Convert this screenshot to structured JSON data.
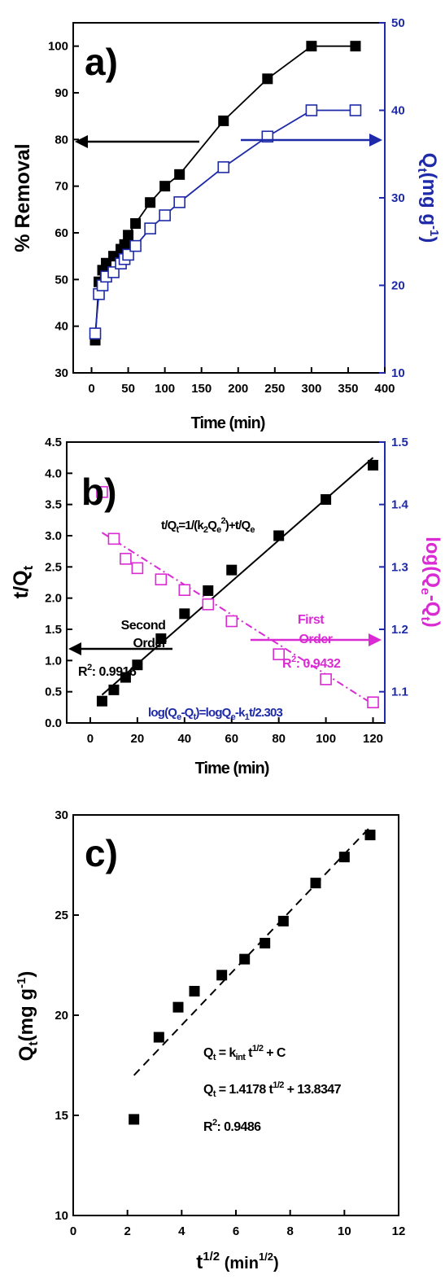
{
  "chart_data": [
    {
      "panel": "a)",
      "type": "line",
      "xlabel": "Time (min)",
      "ylabel": "% Removal",
      "y2label": "Q",
      "y2label_sub": "t",
      "y2label_unit": "(mg g",
      "y2label_sup": "-1",
      "y2label_close": ")",
      "xlim": [
        -25,
        400
      ],
      "ylim": [
        30,
        105
      ],
      "y2lim": [
        10,
        50
      ],
      "xticks": [
        "0",
        "50",
        "100",
        "150",
        "200",
        "250",
        "300",
        "350",
        "400"
      ],
      "yticks": [
        "30",
        "40",
        "50",
        "60",
        "70",
        "80",
        "90",
        "100"
      ],
      "y2ticks": [
        "10",
        "20",
        "30",
        "40",
        "50"
      ],
      "grid": false,
      "colors": {
        "left_axis": "#000000",
        "right_axis": "#1e2aa8",
        "removal": "#000000",
        "qt": "#1e2aa8"
      },
      "series": [
        {
          "axis": "left",
          "marker": "filled-square",
          "x": [
            5,
            10,
            15,
            20,
            30,
            40,
            45,
            50,
            60,
            80,
            100,
            120,
            180,
            240,
            300,
            360
          ],
          "values": [
            37,
            49.5,
            52,
            53.5,
            55,
            56.5,
            57.5,
            59.5,
            62,
            66.5,
            70,
            72.5,
            84,
            93,
            100,
            100
          ]
        },
        {
          "axis": "right",
          "marker": "open-square",
          "x": [
            5,
            10,
            15,
            20,
            30,
            40,
            45,
            50,
            60,
            80,
            100,
            120,
            180,
            240,
            300,
            360
          ],
          "values": [
            14.5,
            19,
            20,
            21,
            21.5,
            22.5,
            23,
            23.5,
            24.5,
            26.5,
            28,
            29.5,
            33.5,
            37,
            40,
            40
          ]
        }
      ]
    },
    {
      "panel": "b)",
      "type": "scatter",
      "xlabel": "Time (min)",
      "ylabel": "t/Q",
      "ylabel_sub": "t",
      "y2label": "log(Q",
      "y2label_sub1": "e",
      "y2label_mid": "-Q",
      "y2label_sub2": "t",
      "y2label_close": ")",
      "xlim": [
        -10,
        125
      ],
      "ylim": [
        0,
        4.5
      ],
      "y2lim": [
        1.05,
        1.5
      ],
      "xticks": [
        "0",
        "20",
        "40",
        "60",
        "80",
        "100",
        "120"
      ],
      "yticks": [
        "0.0",
        "0.5",
        "1.0",
        "1.5",
        "2.0",
        "2.5",
        "3.0",
        "3.5",
        "4.0",
        "4.5"
      ],
      "y2ticks": [
        "1.1",
        "1.2",
        "1.3",
        "1.4",
        "1.5"
      ],
      "grid": false,
      "colors": {
        "left_axis": "#000000",
        "right_axis": "#1e2aa8",
        "second_order": "#000000",
        "first_order": "#d92ad4"
      },
      "series": [
        {
          "axis": "left",
          "marker": "filled-square",
          "x": [
            5,
            10,
            15,
            20,
            30,
            40,
            50,
            60,
            80,
            100,
            120
          ],
          "values": [
            0.35,
            0.53,
            0.73,
            0.93,
            1.35,
            1.75,
            2.12,
            2.45,
            3.0,
            3.58,
            4.13
          ],
          "fit": [
            [
              5,
              0.45
            ],
            [
              120,
              4.25
            ]
          ]
        },
        {
          "axis": "right",
          "marker": "open-square",
          "x": [
            5,
            10,
            15,
            20,
            30,
            40,
            50,
            60,
            80,
            100,
            120
          ],
          "values": [
            1.42,
            1.345,
            1.313,
            1.298,
            1.28,
            1.263,
            1.24,
            1.213,
            1.16,
            1.12,
            1.083
          ],
          "fit": [
            [
              5,
              1.355
            ],
            [
              120,
              1.08
            ]
          ]
        }
      ],
      "annotations": {
        "second_order_eq_a": "t/Q",
        "second_order_eq_b": "t",
        "second_order_eq_c": "=1/(k",
        "second_order_eq_d": "2",
        "second_order_eq_e": "Q",
        "second_order_eq_f": "e",
        "second_order_eq_g": "2",
        "second_order_eq_h": ")+t/Q",
        "second_order_eq_i": "e",
        "second_label_1": "Second",
        "second_label_2": "Order",
        "second_r2_a": "R",
        "second_r2_b": "2",
        "second_r2_c": ": 0.9916",
        "first_label_1": "First",
        "first_label_2": "Order",
        "first_r2_a": "R",
        "first_r2_b": "2",
        "first_r2_c": ": 0.9432",
        "first_order_eq_a": "log(Q",
        "first_order_eq_b": "e",
        "first_order_eq_c": "-Q",
        "first_order_eq_d": "t",
        "first_order_eq_e": ")=logQ",
        "first_order_eq_f": "e",
        "first_order_eq_g": "-k",
        "first_order_eq_h": "1",
        "first_order_eq_i": "t/2.303"
      }
    },
    {
      "panel": "c)",
      "type": "scatter",
      "xlabel_a": "t",
      "xlabel_b": "1/2",
      "xlabel_c": " (min",
      "xlabel_d": "1/2",
      "xlabel_e": ")",
      "ylabel_a": "Q",
      "ylabel_b": "t",
      "ylabel_c": "(mg g",
      "ylabel_d": "-1",
      "ylabel_e": ")",
      "xlim": [
        0,
        12
      ],
      "ylim": [
        10,
        30
      ],
      "xticks": [
        "0",
        "2",
        "4",
        "6",
        "8",
        "10",
        "12"
      ],
      "yticks": [
        "10",
        "15",
        "20",
        "25",
        "30"
      ],
      "grid": false,
      "colors": {
        "axis": "#000000",
        "points": "#000000"
      },
      "series": [
        {
          "marker": "filled-square",
          "x": [
            2.24,
            3.16,
            3.87,
            4.47,
            5.48,
            6.32,
            7.07,
            7.75,
            8.94,
            10.0,
            10.95
          ],
          "values": [
            14.8,
            18.9,
            20.4,
            21.2,
            22.0,
            22.8,
            23.6,
            24.7,
            26.6,
            27.9,
            29.0
          ],
          "fit": [
            [
              2.24,
              17.0
            ],
            [
              10.95,
              29.4
            ]
          ]
        }
      ],
      "annotations": {
        "model_a": "Q",
        "model_b": "t",
        "model_c": " = k",
        "model_d": "int",
        "model_e": " t",
        "model_f": "1/2",
        "model_g": " + C",
        "fit_a": "Q",
        "fit_b": "t",
        "fit_c": " = 1.4178 t",
        "fit_d": "1/2",
        "fit_e": " + 13.8347",
        "r2_a": "R",
        "r2_b": "2",
        "r2_c": ": 0.9486"
      }
    }
  ]
}
